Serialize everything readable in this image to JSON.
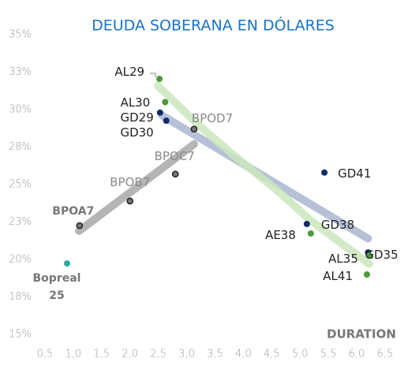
{
  "chart_data": {
    "type": "scatter",
    "title": "DEUDA SOBERANA EN DÓLARES",
    "x_label": "DURATION",
    "xlim": [
      0.5,
      6.5
    ],
    "xticks": [
      {
        "value": 0.5,
        "label": "0,5"
      },
      {
        "value": 1.0,
        "label": "1,0"
      },
      {
        "value": 1.5,
        "label": "1,5"
      },
      {
        "value": 2.0,
        "label": "2,0"
      },
      {
        "value": 2.5,
        "label": "2,5"
      },
      {
        "value": 3.0,
        "label": "3,0"
      },
      {
        "value": 3.5,
        "label": "3,5"
      },
      {
        "value": 4.0,
        "label": "4,0"
      },
      {
        "value": 4.5,
        "label": "4,5"
      },
      {
        "value": 5.0,
        "label": "5,0"
      },
      {
        "value": 5.5,
        "label": "5,5"
      },
      {
        "value": 6.0,
        "label": "6,0"
      },
      {
        "value": 6.5,
        "label": "6,5"
      }
    ],
    "ylim": [
      15,
      35
    ],
    "yticks": [
      {
        "value": 15,
        "label": "15%"
      },
      {
        "value": 17.5,
        "label": "18%"
      },
      {
        "value": 20,
        "label": "20%"
      },
      {
        "value": 22.5,
        "label": "23%"
      },
      {
        "value": 25,
        "label": "25%"
      },
      {
        "value": 27.5,
        "label": "28%"
      },
      {
        "value": 30,
        "label": "30%"
      },
      {
        "value": 32.5,
        "label": "33%"
      },
      {
        "value": 35,
        "label": "35%"
      }
    ],
    "series": [
      {
        "color": "#777777",
        "labels": [
          "BPOA7",
          "BPOB7",
          "BPOC7",
          "BPOD7"
        ],
        "x": [
          1.11,
          2.0,
          2.8,
          3.13
        ],
        "values": [
          22.26,
          23.9,
          25.7,
          28.7
        ],
        "trend": {
          "color": "#a8a8a8",
          "x": [
            1.1,
            3.13
          ],
          "values": [
            21.9,
            27.7
          ]
        }
      },
      {
        "color": "#0d2a6b",
        "labels": [
          "GD29",
          "GD30",
          "GD41",
          "GD38",
          "GD35"
        ],
        "x": [
          2.53,
          2.64,
          5.43,
          5.12,
          6.2
        ],
        "values": [
          29.8,
          29.26,
          25.8,
          22.37,
          20.47
        ],
        "trend": {
          "color": "#a9b6d1",
          "x": [
            2.57,
            6.2
          ],
          "values": [
            29.6,
            21.4
          ]
        }
      },
      {
        "color": "#4a9a3a",
        "labels": [
          "AL29",
          "AL30",
          "AE38",
          "AL35",
          "AL41"
        ],
        "x": [
          2.52,
          2.62,
          5.19,
          6.22,
          6.18
        ],
        "values": [
          32.05,
          30.5,
          21.74,
          20.26,
          19.0
        ],
        "trend": {
          "color": "#cbe6bd",
          "x": [
            2.49,
            3.2,
            3.88,
            4.6,
            5.19,
            6.22
          ],
          "values": [
            31.6,
            29.0,
            26.8,
            24.6,
            22.6,
            19.7
          ]
        }
      },
      {
        "color": "#2aa8a8",
        "labels": [
          "Bopreal 25"
        ],
        "x": [
          0.89
        ],
        "values": [
          19.74
        ]
      }
    ]
  }
}
